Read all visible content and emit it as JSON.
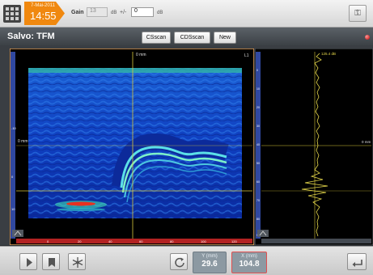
{
  "topbar": {
    "date": "7-Mai-2011",
    "time": "14:55",
    "gain_label": "Gain",
    "gain_value": "13",
    "gain_unit": "dB",
    "delta_label": "+/-",
    "delta_value": "0",
    "delta_unit": "dB",
    "right_icon": "key-icon"
  },
  "titlebar": {
    "title": "Salvo: TFM",
    "tabs": [
      {
        "label": "CSscan"
      },
      {
        "label": "CDSscan"
      },
      {
        "label": "New"
      }
    ]
  },
  "bscan": {
    "top_marker": "0 mm",
    "left_marker": "0 mm",
    "corner_tag": "L1",
    "ruler_left": [
      "-10",
      "0",
      "10"
    ],
    "ruler_bottom": [
      "0",
      "20",
      "40",
      "60",
      "80",
      "100",
      "120"
    ]
  },
  "ascan": {
    "top_value": "125.4 dB",
    "right_marker": "0 mm",
    "ruler_left": [
      "0",
      "10",
      "20",
      "30",
      "40",
      "50",
      "60",
      "70",
      "80",
      "90"
    ]
  },
  "bottombar": {
    "buttons": [
      "play-icon",
      "bookmark-icon",
      "snowflake-icon",
      "reset-icon",
      "return-icon"
    ],
    "y_readout": {
      "label": "Y (mm)",
      "value": "29.6"
    },
    "x_readout": {
      "label": "X (mm)",
      "value": "104.8"
    }
  },
  "colors": {
    "accent_orange": "#f0880f",
    "cursor_yellow": "#d8c73a",
    "ruler_blue": "#3048a0",
    "ruler_red": "#b32222",
    "record_red": "#c00000"
  }
}
